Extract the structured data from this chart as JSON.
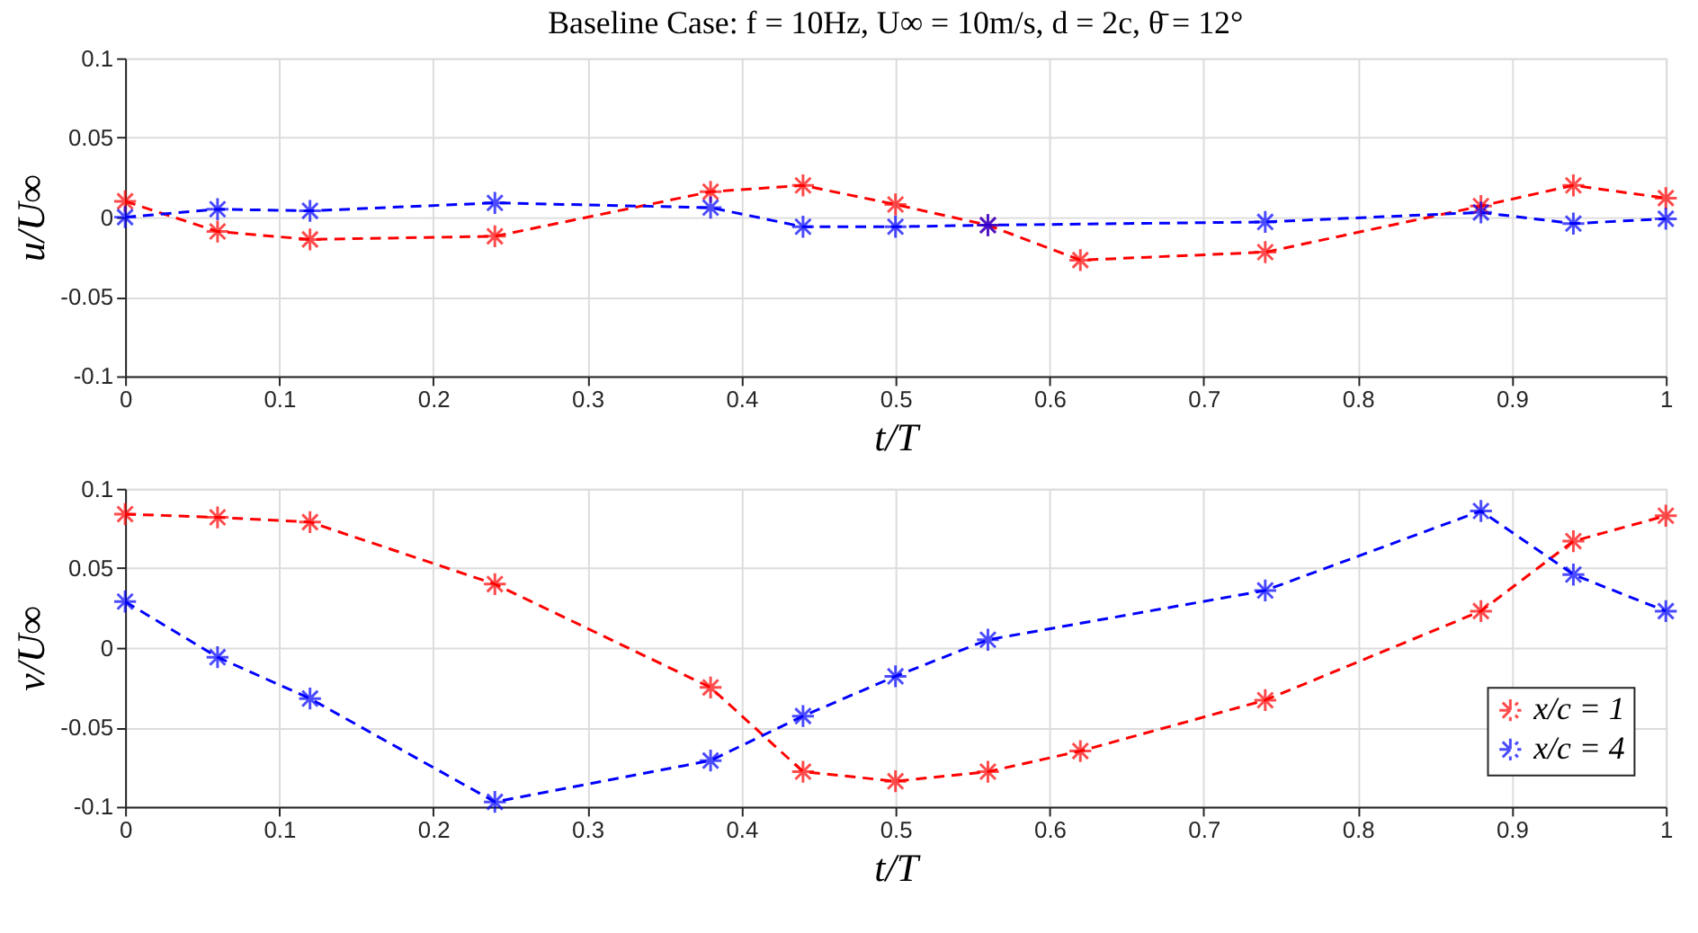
{
  "chart_data": [
    {
      "type": "line",
      "title": "Baseline Case: f = 10Hz, U∞ = 10m/s, d = 2c, θ̄ = 12°",
      "xlabel": "t/T",
      "ylabel": "u/U∞",
      "xlim": [
        0,
        1
      ],
      "ylim": [
        -0.1,
        0.1
      ],
      "xticks": [
        0,
        0.1,
        0.2,
        0.3,
        0.4,
        0.5,
        0.6,
        0.7,
        0.8,
        0.9,
        1
      ],
      "yticks": [
        -0.1,
        -0.05,
        0,
        0.05,
        0.1
      ],
      "grid": true,
      "legend": false,
      "marker": "cross",
      "line_style": "dashed",
      "series": [
        {
          "color": "#ff0000",
          "x": [
            0,
            0.06,
            0.12,
            0.24,
            0.38,
            0.44,
            0.5,
            0.56,
            0.62,
            0.74,
            0.88,
            0.94,
            1
          ],
          "values": [
            0.01,
            -0.009,
            -0.014,
            -0.012,
            0.016,
            0.02,
            0.008,
            -0.005,
            -0.027,
            -0.022,
            0.007,
            0.02,
            0.012
          ]
        },
        {
          "color": "#0000ff",
          "x": [
            0,
            0.06,
            0.12,
            0.24,
            0.38,
            0.44,
            0.5,
            0.56,
            0.74,
            0.88,
            0.94,
            1
          ],
          "values": [
            0,
            0.005,
            0.004,
            0.009,
            0.006,
            -0.006,
            -0.006,
            -0.005,
            -0.003,
            0.003,
            -0.004,
            -0.001
          ]
        }
      ]
    },
    {
      "type": "line",
      "xlabel": "t/T",
      "ylabel": "v/U∞",
      "xlim": [
        0,
        1
      ],
      "ylim": [
        -0.1,
        0.1
      ],
      "xticks": [
        0,
        0.1,
        0.2,
        0.3,
        0.4,
        0.5,
        0.6,
        0.7,
        0.8,
        0.9,
        1
      ],
      "yticks": [
        -0.1,
        -0.05,
        0,
        0.05,
        0.1
      ],
      "grid": true,
      "legend": "bottom right",
      "marker": "cross",
      "line_style": "dashed",
      "series": [
        {
          "name": "x/c = 1",
          "color": "#ff0000",
          "x": [
            0,
            0.06,
            0.12,
            0.24,
            0.38,
            0.44,
            0.5,
            0.56,
            0.62,
            0.74,
            0.88,
            0.94,
            1
          ],
          "values": [
            0.084,
            0.082,
            0.079,
            0.04,
            -0.025,
            -0.078,
            -0.084,
            -0.078,
            -0.065,
            -0.033,
            0.023,
            0.067,
            0.083
          ]
        },
        {
          "name": "x/c = 4",
          "color": "#0000ff",
          "x": [
            0,
            0.06,
            0.12,
            0.24,
            0.38,
            0.44,
            0.5,
            0.56,
            0.74,
            0.88,
            0.94,
            1
          ],
          "values": [
            0.029,
            -0.006,
            -0.032,
            -0.097,
            -0.071,
            -0.043,
            -0.018,
            0.005,
            0.036,
            0.086,
            0.046,
            0.023
          ]
        }
      ]
    }
  ]
}
